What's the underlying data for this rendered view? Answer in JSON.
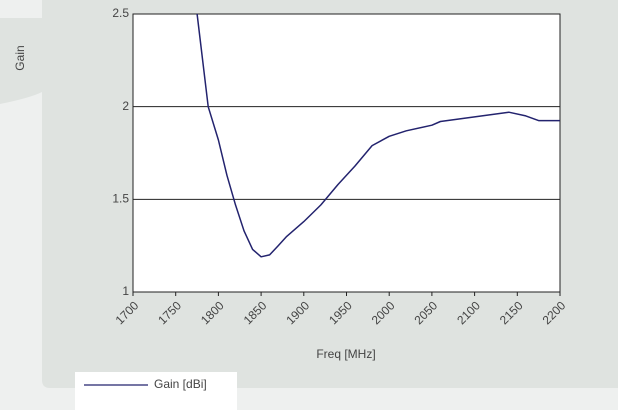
{
  "chart_data": {
    "type": "line",
    "ylabel": "Gain",
    "xlabel": "Freq [MHz]",
    "x": [
      1775,
      1788,
      1800,
      1810,
      1820,
      1830,
      1840,
      1850,
      1860,
      1870,
      1880,
      1900,
      1920,
      1940,
      1960,
      1980,
      2000,
      2020,
      2050,
      2060,
      2100,
      2140,
      2160,
      2175,
      2200
    ],
    "series": [
      {
        "name": "Gain [dBi]",
        "color": "#23236e",
        "values": [
          2.5,
          2.0,
          1.82,
          1.63,
          1.47,
          1.33,
          1.23,
          1.19,
          1.2,
          1.25,
          1.3,
          1.38,
          1.47,
          1.58,
          1.68,
          1.79,
          1.84,
          1.87,
          1.9,
          1.92,
          1.945,
          1.97,
          1.95,
          1.925,
          1.925
        ]
      }
    ],
    "xlim": [
      1700,
      2200
    ],
    "xticks": [
      1700,
      1750,
      1800,
      1850,
      1900,
      1950,
      2000,
      2050,
      2100,
      2150,
      2200
    ],
    "ylim": [
      1,
      2.5
    ],
    "yticks": [
      1,
      1.5,
      2,
      2.5
    ],
    "grid": true
  }
}
